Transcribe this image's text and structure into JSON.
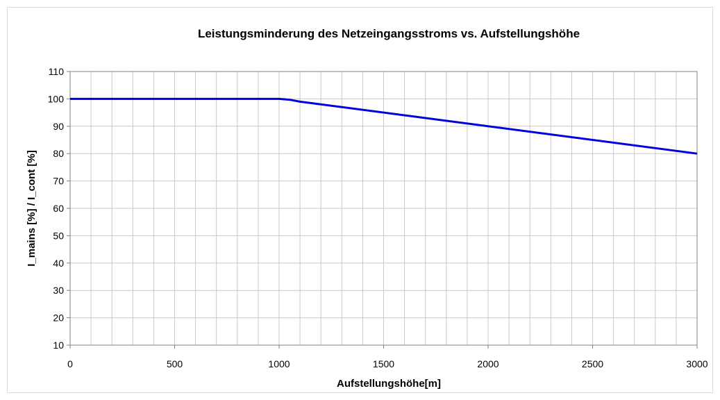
{
  "chart_data": {
    "type": "line",
    "title": "Leistungsminderung des Netzeingangsstroms vs. Aufstellungshöhe",
    "xlabel": "Aufstellungshöhe[m]",
    "ylabel": "I_mains [%] / I_cont [%]",
    "xlim": [
      0,
      3000
    ],
    "ylim": [
      10,
      110
    ],
    "xticks": [
      0,
      500,
      1000,
      1500,
      2000,
      2500,
      3000
    ],
    "yticks": [
      10,
      20,
      30,
      40,
      50,
      60,
      70,
      80,
      90,
      100,
      110
    ],
    "x_minor_step": 100,
    "grid": true,
    "legend": "none",
    "series": [
      {
        "color": "#0000dd",
        "x": [
          0,
          1000,
          1050,
          1100,
          3000
        ],
        "y": [
          100,
          100,
          99.7,
          99,
          80
        ]
      }
    ]
  }
}
